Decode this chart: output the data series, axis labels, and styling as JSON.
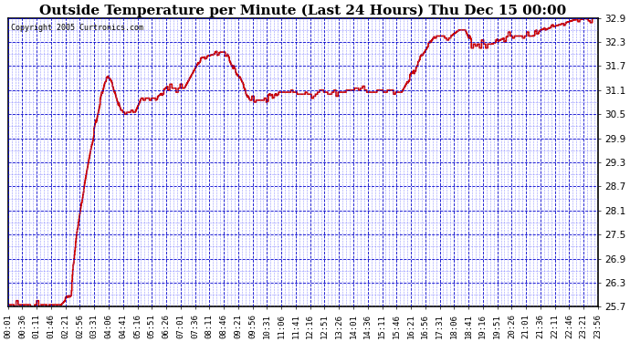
{
  "title": "Outside Temperature per Minute (Last 24 Hours) Thu Dec 15 00:00",
  "copyright": "Copyright 2005 Curtronics.com",
  "ylim": [
    25.7,
    32.9
  ],
  "yticks": [
    25.7,
    26.3,
    26.9,
    27.5,
    28.1,
    28.7,
    29.3,
    29.9,
    30.5,
    31.1,
    31.7,
    32.3,
    32.9
  ],
  "background_color": "#ffffff",
  "plot_bg_color": "#ffffff",
  "grid_color_major": "#0000cc",
  "grid_color_minor": "#6666ff",
  "line_color": "#cc0000",
  "title_fontsize": 11,
  "xlabel_fontsize": 6.5,
  "ylabel_fontsize": 7.5,
  "xtick_labels": [
    "00:01",
    "00:36",
    "01:11",
    "01:46",
    "02:21",
    "02:56",
    "03:31",
    "04:06",
    "04:41",
    "05:16",
    "05:51",
    "06:26",
    "07:01",
    "07:36",
    "08:11",
    "08:46",
    "09:21",
    "09:56",
    "10:31",
    "11:06",
    "11:41",
    "12:16",
    "12:51",
    "13:26",
    "14:01",
    "14:36",
    "15:11",
    "15:46",
    "16:21",
    "16:56",
    "17:31",
    "18:06",
    "18:41",
    "19:16",
    "19:51",
    "20:26",
    "21:01",
    "21:36",
    "22:11",
    "22:46",
    "23:21",
    "23:56"
  ],
  "num_points": 1440,
  "figwidth": 6.9,
  "figheight": 3.75,
  "dpi": 100
}
